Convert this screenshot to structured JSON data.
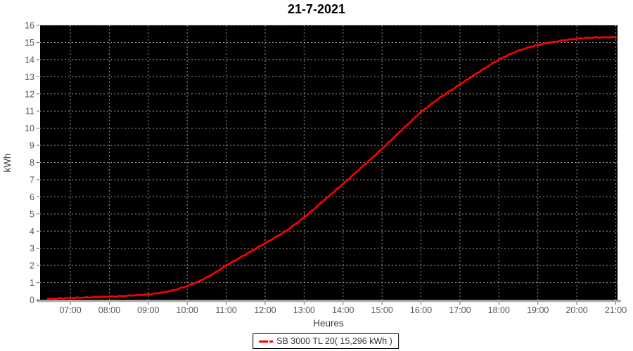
{
  "chart_data": {
    "type": "line",
    "title": "21-7-2021",
    "xlabel": "Heures",
    "ylabel": "kWh",
    "x_ticks": [
      "07:00",
      "08:00",
      "09:00",
      "10:00",
      "11:00",
      "12:00",
      "13:00",
      "14:00",
      "15:00",
      "16:00",
      "17:00",
      "18:00",
      "19:00",
      "20:00",
      "21:00"
    ],
    "y_ticks": [
      "0",
      "1",
      "2",
      "3",
      "4",
      "5",
      "6",
      "7",
      "8",
      "9",
      "10",
      "11",
      "12",
      "13",
      "14",
      "15",
      "16"
    ],
    "xlim_hours": [
      6.22,
      21.05
    ],
    "ylim": [
      0,
      16
    ],
    "grid": true,
    "legend_position": "bottom",
    "plot_bg_color": "#000000",
    "grid_color": "#9a9a9a",
    "axis_label_color": "#3d3d3d",
    "tick_label_color": "#555555",
    "series": [
      {
        "name": "SB 3000 TL 20( 15,296 kWh )",
        "color": "#ff0000",
        "total_label": "15,296 kWh",
        "points": [
          [
            6.42,
            0.05
          ],
          [
            6.5,
            0.06
          ],
          [
            6.75,
            0.08
          ],
          [
            7.0,
            0.1
          ],
          [
            7.25,
            0.12
          ],
          [
            7.5,
            0.14
          ],
          [
            7.75,
            0.16
          ],
          [
            8.0,
            0.18
          ],
          [
            8.25,
            0.21
          ],
          [
            8.5,
            0.24
          ],
          [
            8.75,
            0.27
          ],
          [
            9.0,
            0.31
          ],
          [
            9.25,
            0.38
          ],
          [
            9.5,
            0.48
          ],
          [
            9.75,
            0.62
          ],
          [
            10.0,
            0.8
          ],
          [
            10.25,
            1.02
          ],
          [
            10.5,
            1.3
          ],
          [
            10.75,
            1.62
          ],
          [
            11.0,
            2.0
          ],
          [
            11.25,
            2.32
          ],
          [
            11.5,
            2.64
          ],
          [
            11.75,
            2.97
          ],
          [
            12.0,
            3.3
          ],
          [
            12.25,
            3.62
          ],
          [
            12.5,
            3.95
          ],
          [
            12.75,
            4.36
          ],
          [
            13.0,
            4.8
          ],
          [
            13.25,
            5.28
          ],
          [
            13.5,
            5.78
          ],
          [
            13.75,
            6.26
          ],
          [
            14.0,
            6.75
          ],
          [
            14.25,
            7.26
          ],
          [
            14.5,
            7.77
          ],
          [
            14.75,
            8.28
          ],
          [
            15.0,
            8.8
          ],
          [
            15.25,
            9.34
          ],
          [
            15.5,
            9.88
          ],
          [
            15.75,
            10.42
          ],
          [
            16.0,
            10.95
          ],
          [
            16.25,
            11.38
          ],
          [
            16.5,
            11.8
          ],
          [
            16.75,
            12.18
          ],
          [
            17.0,
            12.55
          ],
          [
            17.25,
            12.93
          ],
          [
            17.5,
            13.3
          ],
          [
            17.75,
            13.66
          ],
          [
            18.0,
            14.0
          ],
          [
            18.25,
            14.28
          ],
          [
            18.5,
            14.52
          ],
          [
            18.75,
            14.7
          ],
          [
            19.0,
            14.85
          ],
          [
            19.25,
            14.97
          ],
          [
            19.5,
            15.07
          ],
          [
            19.75,
            15.15
          ],
          [
            20.0,
            15.22
          ],
          [
            20.25,
            15.26
          ],
          [
            20.5,
            15.29
          ],
          [
            20.75,
            15.3
          ],
          [
            21.0,
            15.3
          ]
        ]
      }
    ]
  },
  "legend": {
    "label": "SB 3000 TL 20( 15,296 kWh )"
  }
}
